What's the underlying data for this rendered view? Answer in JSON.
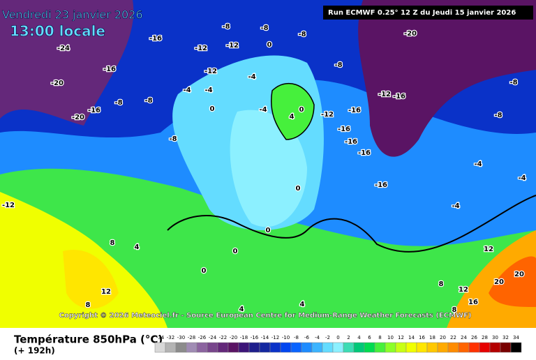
{
  "header": {
    "date": "Vendredi 23 janvier 2026",
    "time": "13:00 locale",
    "run": "Run ECMWF 0.25° 12 Z du Jeudi 15 janvier 2026"
  },
  "copyright": "Copyright © 2026 Meteociel.fr - Source European Centre for Medium-Range Weather Forecasts (ECMWF)",
  "contour_labels": [
    -24,
    -16,
    -20,
    -16,
    -20,
    -16,
    -12,
    -8,
    -8,
    -8,
    -12,
    -12,
    -4,
    -4,
    -8,
    -8,
    -8,
    0,
    0,
    -4,
    -4,
    4,
    0,
    -12,
    -16,
    -16,
    -16,
    -16,
    -16,
    -12,
    -16,
    -8,
    -8,
    -8,
    -4,
    -4,
    -12,
    8,
    4,
    12,
    8,
    0,
    0,
    0,
    0,
    8,
    12,
    16,
    20,
    20,
    -20,
    4,
    4,
    8,
    12,
    -4
  ],
  "legend": {
    "title": "Température 850hPa (°C)",
    "subtitle": "(+ 192h)",
    "ticks": [
      -34,
      -32,
      -30,
      -28,
      -26,
      -24,
      -22,
      -20,
      -18,
      -16,
      -14,
      -12,
      -10,
      -8,
      -6,
      -4,
      -2,
      0,
      2,
      4,
      6,
      8,
      10,
      12,
      14,
      16,
      18,
      20,
      22,
      24,
      26,
      28,
      30,
      32,
      34
    ],
    "colors": [
      "#d8d8d8",
      "#b4b4b4",
      "#8c8c8c",
      "#a08cb4",
      "#8c64a0",
      "#78468c",
      "#64287a",
      "#5a1464",
      "#3c1478",
      "#1e1e8c",
      "#1428a0",
      "#0a32c8",
      "#0046f0",
      "#0a64ff",
      "#1e8cff",
      "#3cb4ff",
      "#64dcff",
      "#8cf0ff",
      "#3cdcb4",
      "#00c878",
      "#00dc50",
      "#46f03c",
      "#8cff28",
      "#c8ff14",
      "#f0ff00",
      "#ffe600",
      "#ffc800",
      "#ffaa00",
      "#ff8c00",
      "#ff6400",
      "#ff3200",
      "#e60000",
      "#b40000",
      "#780000",
      "#000000"
    ]
  }
}
